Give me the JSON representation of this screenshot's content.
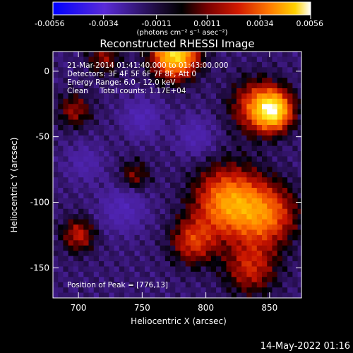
{
  "chart_data": {
    "type": "heatmap",
    "title": "Reconstructed RHESSI Image",
    "xlabel": "Heliocentric X (arcsec)",
    "ylabel": "Heliocentric Y (arcsec)",
    "xlim": [
      680,
      875
    ],
    "ylim": [
      -173,
      15
    ],
    "x_ticks": [
      700,
      750,
      800,
      850
    ],
    "y_ticks": [
      0,
      -50,
      -100,
      -150
    ],
    "colorbar": {
      "range": [
        -0.0056,
        0.0056
      ],
      "ticks": [
        -0.0056,
        -0.0034,
        -0.0011,
        0.0011,
        0.0034,
        0.0056
      ],
      "tick_labels": [
        "-0.0056",
        "-0.0034",
        "-0.0011",
        "0.0011",
        "0.0034",
        "0.0056"
      ],
      "units": "(photons cm⁻² s⁻¹ asec⁻²)"
    },
    "annotations": [
      "21-Mar-2014 01:41:40.000 to 01:43:00.000",
      "Detectors: 3F 4F 5F 6F 7F 8F, Att 0",
      "Energy Range: 6.0 - 12.0 keV",
      "Clean     Total counts: 1.17E+04"
    ],
    "peak_label": "Position of Peak = [776,13]",
    "sources": [
      {
        "x": 776,
        "y": 13,
        "sigma": 12,
        "amp": 0.0056
      },
      {
        "x": 853,
        "y": -30,
        "sigma": 10,
        "amp": 0.005
      },
      {
        "x": 840,
        "y": -27,
        "sigma": 14,
        "amp": 0.0026
      },
      {
        "x": 818,
        "y": -100,
        "sigma": 18,
        "amp": 0.004
      },
      {
        "x": 848,
        "y": -110,
        "sigma": 16,
        "amp": 0.003
      },
      {
        "x": 790,
        "y": -130,
        "sigma": 12,
        "amp": 0.0024
      },
      {
        "x": 835,
        "y": -150,
        "sigma": 14,
        "amp": 0.0022
      },
      {
        "x": 700,
        "y": -125,
        "sigma": 9,
        "amp": 0.0021
      },
      {
        "x": 697,
        "y": -30,
        "sigma": 9,
        "amp": 0.0017
      },
      {
        "x": 720,
        "y": 10,
        "sigma": 9,
        "amp": 0.0016
      },
      {
        "x": 744,
        "y": -80,
        "sigma": 8,
        "amp": 0.0015
      },
      {
        "x": 750,
        "y": -35,
        "sigma": 10,
        "amp": -0.0014
      },
      {
        "x": 735,
        "y": -105,
        "sigma": 12,
        "amp": -0.0014
      },
      {
        "x": 792,
        "y": -50,
        "sigma": 10,
        "amp": -0.0012
      },
      {
        "x": 705,
        "y": -70,
        "sigma": 10,
        "amp": -0.001
      }
    ],
    "baseline": -0.0008
  },
  "footer": {
    "timestamp": "14-May-2022 01:16"
  }
}
